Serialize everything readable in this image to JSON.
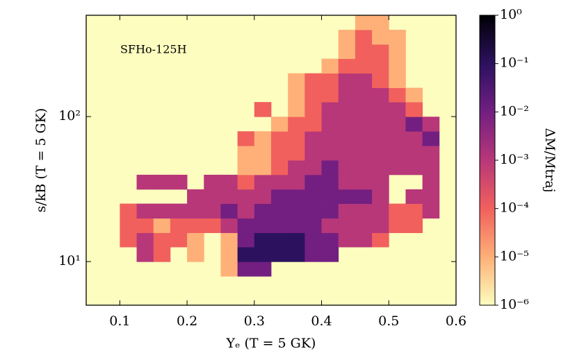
{
  "chart_data": {
    "type": "heatmap",
    "annotation": "SFHo-125H",
    "xlabel": "Yₑ (T = 5 GK)",
    "ylabel": "s/kB (T = 5 GK)",
    "colorbar_label": "ΔM/Mtraj",
    "xlim": [
      0.05,
      0.6
    ],
    "ylim": [
      5,
      500
    ],
    "ylog": true,
    "xticks": [
      0.1,
      0.2,
      0.3,
      0.4,
      0.5,
      0.6
    ],
    "yticks": [
      {
        "value": 10,
        "label": "10¹"
      },
      {
        "value": 100,
        "label": "10²"
      }
    ],
    "clim": [
      1e-06,
      1
    ],
    "clog": true,
    "cticks": [
      {
        "value": 1e-06,
        "label": "10⁻⁶"
      },
      {
        "value": 1e-05,
        "label": "10⁻⁵"
      },
      {
        "value": 0.0001,
        "label": "10⁻⁴"
      },
      {
        "value": 0.001,
        "label": "10⁻³"
      },
      {
        "value": 0.01,
        "label": "10⁻²"
      },
      {
        "value": 0.1,
        "label": "10⁻¹"
      },
      {
        "value": 1,
        "label": "10⁰"
      }
    ],
    "colormap": [
      "#fcfdbf",
      "#feb078",
      "#f1605d",
      "#b73779",
      "#721f81",
      "#2c115f",
      "#000004"
    ],
    "background": "#fcfdbf",
    "x_edges": [
      0.05,
      0.075,
      0.1,
      0.125,
      0.15,
      0.175,
      0.2,
      0.225,
      0.25,
      0.275,
      0.3,
      0.325,
      0.35,
      0.375,
      0.4,
      0.425,
      0.45,
      0.475,
      0.5,
      0.525,
      0.55,
      0.575,
      0.6
    ],
    "y_edges": [
      5,
      6.29,
      7.92,
      9.98,
      12.6,
      15.8,
      19.9,
      25.1,
      31.5,
      39.7,
      50,
      62.9,
      79.2,
      99.8,
      126,
      158,
      199,
      251,
      315,
      397,
      500
    ],
    "z": [
      [
        null,
        null,
        null,
        null,
        null,
        null,
        null,
        null,
        null,
        null,
        null,
        null,
        null,
        null,
        null,
        null,
        null,
        null,
        null,
        null,
        null,
        null
      ],
      [
        null,
        null,
        null,
        null,
        null,
        null,
        null,
        null,
        null,
        null,
        null,
        null,
        null,
        null,
        null,
        null,
        null,
        null,
        null,
        null,
        null,
        null
      ],
      [
        null,
        null,
        null,
        null,
        null,
        null,
        null,
        null,
        1e-05,
        0.01,
        0.01,
        null,
        null,
        null,
        null,
        null,
        null,
        null,
        null,
        null,
        null,
        null
      ],
      [
        null,
        null,
        null,
        0.001,
        0.0001,
        null,
        1e-05,
        null,
        1e-05,
        0.1,
        0.1,
        0.1,
        0.1,
        0.01,
        0.01,
        null,
        null,
        null,
        null,
        null,
        null,
        null
      ],
      [
        null,
        null,
        0.0001,
        0.001,
        0.0001,
        0.0001,
        1e-05,
        null,
        1e-05,
        0.01,
        0.1,
        0.1,
        0.1,
        0.01,
        0.01,
        0.001,
        0.001,
        0.0001,
        null,
        null,
        null,
        null
      ],
      [
        null,
        null,
        0.0001,
        0.0001,
        1e-05,
        0.0001,
        0.0001,
        0.0001,
        0.001,
        0.01,
        0.01,
        0.01,
        0.01,
        0.01,
        0.001,
        0.001,
        0.001,
        0.001,
        0.0001,
        0.0001,
        null,
        null
      ],
      [
        null,
        null,
        0.0001,
        0.001,
        0.001,
        0.001,
        0.001,
        0.001,
        0.01,
        0.001,
        0.01,
        0.01,
        0.01,
        0.01,
        0.01,
        0.001,
        0.001,
        0.001,
        0.0001,
        0.0001,
        0.001,
        null
      ],
      [
        null,
        null,
        null,
        null,
        null,
        null,
        0.001,
        0.001,
        0.001,
        0.001,
        0.001,
        0.01,
        0.01,
        0.01,
        0.01,
        0.01,
        0.01,
        0.001,
        null,
        0.001,
        0.001,
        null
      ],
      [
        null,
        null,
        null,
        0.001,
        0.001,
        0.001,
        null,
        0.001,
        0.001,
        0.0001,
        0.001,
        0.001,
        0.001,
        0.01,
        0.01,
        0.001,
        0.001,
        0.001,
        null,
        null,
        0.001,
        null
      ],
      [
        null,
        null,
        null,
        null,
        null,
        null,
        null,
        null,
        null,
        1e-05,
        1e-05,
        0.0001,
        0.001,
        0.001,
        0.01,
        0.001,
        0.001,
        0.001,
        0.001,
        0.001,
        0.001,
        null
      ],
      [
        null,
        null,
        null,
        null,
        null,
        null,
        null,
        null,
        null,
        1e-05,
        1e-05,
        0.0001,
        0.0001,
        0.001,
        0.001,
        0.001,
        0.001,
        0.001,
        0.001,
        0.001,
        0.001,
        null
      ],
      [
        null,
        null,
        null,
        null,
        null,
        null,
        null,
        null,
        null,
        0.0001,
        1e-05,
        0.0001,
        0.0001,
        0.001,
        0.001,
        0.001,
        0.001,
        0.001,
        0.001,
        0.001,
        0.01,
        null
      ],
      [
        null,
        null,
        null,
        null,
        null,
        null,
        null,
        null,
        null,
        null,
        null,
        1e-05,
        0.0001,
        0.0001,
        0.001,
        0.001,
        0.001,
        0.001,
        0.001,
        0.01,
        0.001,
        null
      ],
      [
        null,
        null,
        null,
        null,
        null,
        null,
        null,
        null,
        null,
        null,
        0.0001,
        null,
        1e-05,
        0.0001,
        0.001,
        0.001,
        0.001,
        0.001,
        0.001,
        0.0001,
        null,
        null
      ],
      [
        null,
        null,
        null,
        null,
        null,
        null,
        null,
        null,
        null,
        null,
        null,
        null,
        1e-05,
        0.0001,
        0.0001,
        0.001,
        0.001,
        0.001,
        0.0001,
        1e-05,
        null,
        null
      ],
      [
        null,
        null,
        null,
        null,
        null,
        null,
        null,
        null,
        null,
        null,
        null,
        null,
        1e-05,
        0.0001,
        0.0001,
        0.001,
        0.001,
        0.0001,
        1e-05,
        null,
        null,
        null
      ],
      [
        null,
        null,
        null,
        null,
        null,
        null,
        null,
        null,
        null,
        null,
        null,
        1e-06,
        null,
        null,
        1e-05,
        0.0001,
        0.0001,
        0.0001,
        1e-05,
        null,
        null,
        null
      ],
      [
        null,
        null,
        null,
        null,
        null,
        null,
        null,
        null,
        null,
        null,
        1e-06,
        null,
        null,
        null,
        null,
        1e-05,
        0.0001,
        0.0001,
        1e-05,
        null,
        null,
        null
      ],
      [
        null,
        null,
        null,
        null,
        null,
        null,
        null,
        null,
        null,
        null,
        1e-06,
        null,
        null,
        null,
        null,
        1e-05,
        0.0001,
        1e-05,
        1e-05,
        null,
        null,
        null
      ],
      [
        null,
        null,
        null,
        null,
        null,
        null,
        null,
        null,
        null,
        null,
        1e-06,
        null,
        null,
        null,
        null,
        null,
        1e-05,
        1e-05,
        null,
        null,
        null,
        null
      ]
    ]
  }
}
